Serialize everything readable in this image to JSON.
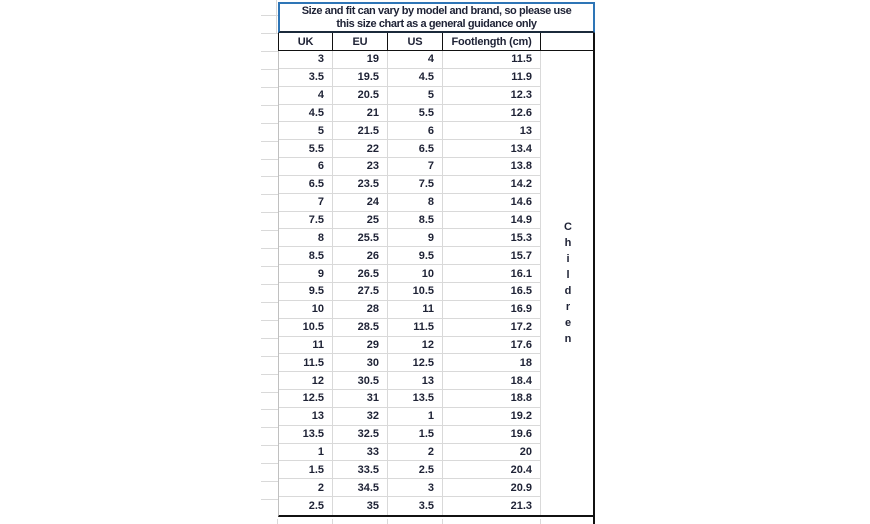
{
  "notice": {
    "lines": [
      "Size and fit can vary by model and brand, so please use",
      "this size chart as a general guidance only"
    ]
  },
  "chart_data": {
    "type": "table",
    "title": "Size and fit can vary by model and brand, so please use this size chart as a general guidance only",
    "columns": [
      "UK",
      "EU",
      "US",
      "Footlength (cm)"
    ],
    "row_group_label": "Children",
    "rows": [
      [
        "3",
        "19",
        "4",
        "11.5"
      ],
      [
        "3.5",
        "19.5",
        "4.5",
        "11.9"
      ],
      [
        "4",
        "20.5",
        "5",
        "12.3"
      ],
      [
        "4.5",
        "21",
        "5.5",
        "12.6"
      ],
      [
        "5",
        "21.5",
        "6",
        "13"
      ],
      [
        "5.5",
        "22",
        "6.5",
        "13.4"
      ],
      [
        "6",
        "23",
        "7",
        "13.8"
      ],
      [
        "6.5",
        "23.5",
        "7.5",
        "14.2"
      ],
      [
        "7",
        "24",
        "8",
        "14.6"
      ],
      [
        "7.5",
        "25",
        "8.5",
        "14.9"
      ],
      [
        "8",
        "25.5",
        "9",
        "15.3"
      ],
      [
        "8.5",
        "26",
        "9.5",
        "15.7"
      ],
      [
        "9",
        "26.5",
        "10",
        "16.1"
      ],
      [
        "9.5",
        "27.5",
        "10.5",
        "16.5"
      ],
      [
        "10",
        "28",
        "11",
        "16.9"
      ],
      [
        "10.5",
        "28.5",
        "11.5",
        "17.2"
      ],
      [
        "11",
        "29",
        "12",
        "17.6"
      ],
      [
        "11.5",
        "30",
        "12.5",
        "18"
      ],
      [
        "12",
        "30.5",
        "13",
        "18.4"
      ],
      [
        "12.5",
        "31",
        "13.5",
        "18.8"
      ],
      [
        "13",
        "32",
        "1",
        "19.2"
      ],
      [
        "13.5",
        "32.5",
        "1.5",
        "19.6"
      ],
      [
        "1",
        "33",
        "2",
        "20"
      ],
      [
        "1.5",
        "33.5",
        "2.5",
        "20.4"
      ],
      [
        "2",
        "34.5",
        "3",
        "20.9"
      ],
      [
        "2.5",
        "35",
        "3.5",
        "21.3"
      ]
    ]
  },
  "colors": {
    "notice_border": "#2e75b6",
    "notice_bottom": "#1b2a3b",
    "table_border": "#111111",
    "grid_line": "#d9d9d9",
    "edge_gray": "#c0c0c0",
    "text": "#1e2235",
    "background": "#ffffff"
  }
}
